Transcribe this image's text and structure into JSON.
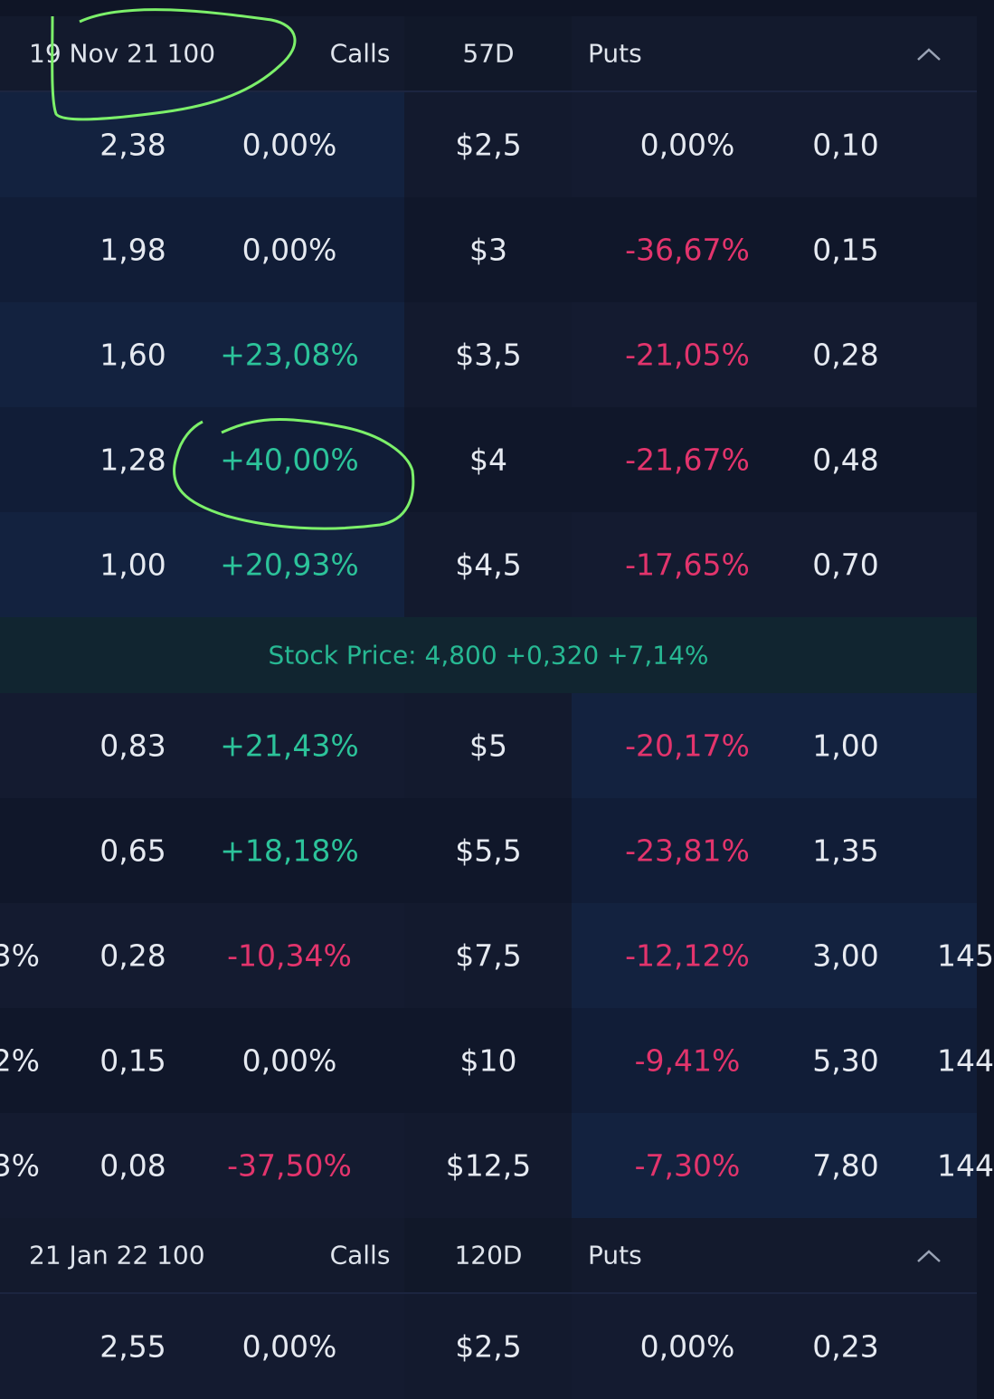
{
  "sections": [
    {
      "header": {
        "expiry": "19 Nov 21 100",
        "calls": "Calls",
        "days": "57D",
        "puts": "Puts"
      },
      "rows": [
        {
          "call_price": "2,38",
          "call_change": "0,00%",
          "strike": "$2,5",
          "put_change": "0,00%",
          "put_price": "0,10"
        },
        {
          "call_price": "1,98",
          "call_change": "0,00%",
          "strike": "$3",
          "put_change": "-36,67%",
          "put_price": "0,15"
        },
        {
          "call_price": "1,60",
          "call_change": "+23,08%",
          "strike": "$3,5",
          "put_change": "-21,05%",
          "put_price": "0,28"
        },
        {
          "call_price": "1,28",
          "call_change": "+40,00%",
          "strike": "$4",
          "put_change": "-21,67%",
          "put_price": "0,48"
        },
        {
          "call_price": "1,00",
          "call_change": "+20,93%",
          "strike": "$4,5",
          "put_change": "-17,65%",
          "put_price": "0,70"
        }
      ],
      "stock_price": "Stock Price: 4,800 +0,320 +7,14%",
      "rows_below": [
        {
          "call_price": "0,83",
          "call_change": "+21,43%",
          "strike": "$5",
          "put_change": "-20,17%",
          "put_price": "1,00"
        },
        {
          "call_price": "0,65",
          "call_change": "+18,18%",
          "strike": "$5,5",
          "put_change": "-23,81%",
          "put_price": "1,35"
        },
        {
          "left": "3%",
          "call_price": "0,28",
          "call_change": "-10,34%",
          "strike": "$7,5",
          "put_change": "-12,12%",
          "put_price": "3,00",
          "right": "145"
        },
        {
          "left": "2%",
          "call_price": "0,15",
          "call_change": "0,00%",
          "strike": "$10",
          "put_change": "-9,41%",
          "put_price": "5,30",
          "right": "144"
        },
        {
          "left": "3%",
          "call_price": "0,08",
          "call_change": "-37,50%",
          "strike": "$12,5",
          "put_change": "-7,30%",
          "put_price": "7,80",
          "right": "144"
        }
      ]
    },
    {
      "header": {
        "expiry": "21 Jan 22 100",
        "calls": "Calls",
        "days": "120D",
        "puts": "Puts"
      },
      "rows": [
        {
          "call_price": "2,55",
          "call_change": "0,00%",
          "strike": "$2,5",
          "put_change": "0,00%",
          "put_price": "0,23"
        }
      ]
    }
  ]
}
